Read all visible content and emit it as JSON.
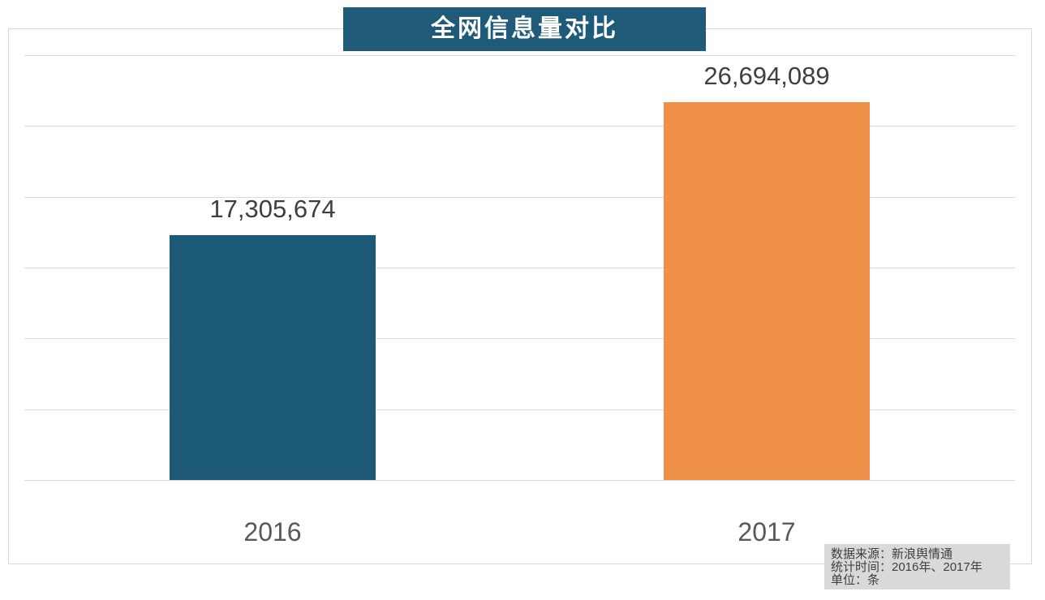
{
  "title": {
    "text": "全网信息量对比",
    "bg_color": "#1f5b78",
    "text_color": "#ffffff"
  },
  "chart_data": {
    "type": "bar",
    "title": "全网信息量对比",
    "categories": [
      "2016",
      "2017"
    ],
    "values": [
      17305674,
      26694089
    ],
    "value_labels": [
      "17,305,674",
      "26,694,089"
    ],
    "bar_colors": [
      "#1c5a78",
      "#ef9048"
    ],
    "xlabel": "",
    "ylabel": "",
    "ylim": [
      0,
      30000000
    ],
    "gridline_step": 5000000,
    "grid": true,
    "legend": "none",
    "y_tick_labels_visible": false
  },
  "footnote": {
    "bg_color": "#d9d9d9",
    "lines": [
      "数据来源：新浪舆情通",
      "统计时间：2016年、2017年",
      "单位：条"
    ]
  }
}
